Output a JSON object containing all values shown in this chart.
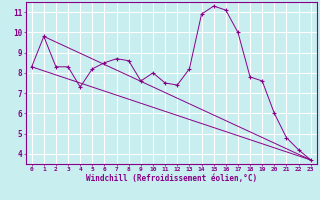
{
  "xlabel": "Windchill (Refroidissement éolien,°C)",
  "bg_color": "#c8eef0",
  "line_color": "#880088",
  "grid_color": "#ffffff",
  "xlim": [
    -0.5,
    23.5
  ],
  "ylim": [
    3.5,
    11.5
  ],
  "xticks": [
    0,
    1,
    2,
    3,
    4,
    5,
    6,
    7,
    8,
    9,
    10,
    11,
    12,
    13,
    14,
    15,
    16,
    17,
    18,
    19,
    20,
    21,
    22,
    23
  ],
  "yticks": [
    4,
    5,
    6,
    7,
    8,
    9,
    10,
    11
  ],
  "data_line": {
    "x": [
      0,
      1,
      2,
      3,
      4,
      5,
      6,
      7,
      8,
      9,
      10,
      11,
      12,
      13,
      14,
      15,
      16,
      17,
      18,
      19,
      20,
      21,
      22,
      23
    ],
    "y": [
      8.3,
      9.8,
      8.3,
      8.3,
      7.3,
      8.2,
      8.5,
      8.7,
      8.6,
      7.6,
      8.0,
      7.5,
      7.4,
      8.2,
      10.9,
      11.3,
      11.1,
      10.0,
      7.8,
      7.6,
      6.0,
      4.8,
      4.2,
      3.7
    ]
  },
  "trend_line1": {
    "x": [
      0,
      23
    ],
    "y": [
      8.3,
      3.7
    ]
  },
  "trend_line2": {
    "x": [
      1,
      23
    ],
    "y": [
      9.8,
      3.7
    ]
  }
}
